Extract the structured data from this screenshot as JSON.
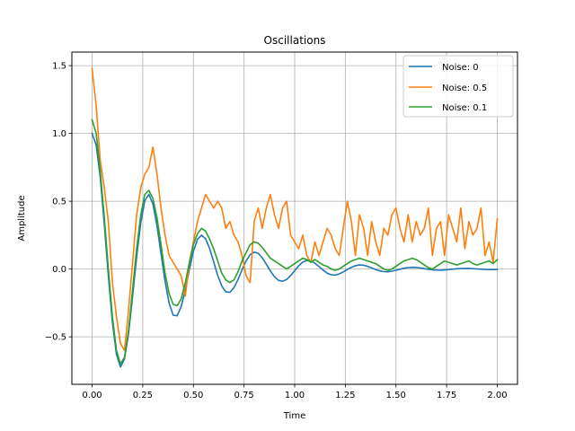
{
  "chart_data": {
    "type": "line",
    "title": "Oscillations",
    "xlabel": "Time",
    "ylabel": "Amplitude",
    "xlim": [
      -0.1,
      2.1
    ],
    "ylim": [
      -0.85,
      1.6
    ],
    "x_ticks": [
      0.0,
      0.25,
      0.5,
      0.75,
      1.0,
      1.25,
      1.5,
      1.75,
      2.0
    ],
    "x_tick_labels": [
      "0.00",
      "0.25",
      "0.50",
      "0.75",
      "1.00",
      "1.25",
      "1.50",
      "1.75",
      "2.00"
    ],
    "y_ticks": [
      -0.5,
      0.0,
      0.5,
      1.0,
      1.5
    ],
    "y_tick_labels": [
      "−0.5",
      "0.0",
      "0.5",
      "1.0",
      "1.5"
    ],
    "grid": true,
    "legend_position": "top-right",
    "series": [
      {
        "name": "Noise: 0",
        "color": "#1f77b4",
        "x": [
          0.0,
          0.02,
          0.04,
          0.06,
          0.08,
          0.1,
          0.12,
          0.14,
          0.16,
          0.18,
          0.2,
          0.22,
          0.24,
          0.26,
          0.28,
          0.3,
          0.32,
          0.34,
          0.36,
          0.38,
          0.4,
          0.42,
          0.44,
          0.46,
          0.48,
          0.5,
          0.52,
          0.54,
          0.56,
          0.58,
          0.6,
          0.62,
          0.64,
          0.66,
          0.68,
          0.7,
          0.72,
          0.74,
          0.76,
          0.78,
          0.8,
          0.82,
          0.84,
          0.86,
          0.88,
          0.9,
          0.92,
          0.94,
          0.96,
          0.98,
          1.0,
          1.02,
          1.04,
          1.06,
          1.08,
          1.1,
          1.12,
          1.14,
          1.16,
          1.18,
          1.2,
          1.22,
          1.24,
          1.26,
          1.28,
          1.3,
          1.32,
          1.34,
          1.36,
          1.38,
          1.4,
          1.42,
          1.44,
          1.46,
          1.48,
          1.5,
          1.52,
          1.54,
          1.56,
          1.58,
          1.6,
          1.62,
          1.64,
          1.66,
          1.68,
          1.7,
          1.72,
          1.74,
          1.76,
          1.78,
          1.8,
          1.82,
          1.84,
          1.86,
          1.88,
          1.9,
          1.92,
          1.94,
          1.96,
          1.98,
          2.0
        ],
        "y": [
          1.0,
          0.914,
          0.675,
          0.33,
          -0.05,
          -0.391,
          -0.628,
          -0.722,
          -0.663,
          -0.473,
          -0.201,
          0.092,
          0.343,
          0.504,
          0.55,
          0.48,
          0.321,
          0.115,
          -0.089,
          -0.251,
          -0.34,
          -0.345,
          -0.276,
          -0.152,
          -0.002,
          0.131,
          0.219,
          0.25,
          0.224,
          0.152,
          0.053,
          -0.046,
          -0.124,
          -0.168,
          -0.171,
          -0.137,
          -0.077,
          -0.006,
          0.06,
          0.106,
          0.125,
          0.116,
          0.083,
          0.036,
          -0.014,
          -0.057,
          -0.083,
          -0.09,
          -0.077,
          -0.048,
          -0.012,
          0.024,
          0.051,
          0.063,
          0.06,
          0.043,
          0.018,
          -0.008,
          -0.03,
          -0.042,
          -0.044,
          -0.036,
          -0.021,
          -0.003,
          0.013,
          0.025,
          0.03,
          0.028,
          0.02,
          0.008,
          -0.004,
          -0.014,
          -0.019,
          -0.02,
          -0.016,
          -0.009,
          -0.001,
          0.006,
          0.011,
          0.013,
          0.012,
          0.008,
          0.003,
          -0.002,
          -0.006,
          -0.008,
          -0.009,
          -0.007,
          -0.004,
          -0.001,
          0.002,
          0.004,
          0.005,
          0.005,
          0.003,
          0.001,
          -0.001,
          -0.003,
          -0.004,
          -0.004,
          -0.003
        ]
      },
      {
        "name": "Noise: 0.5",
        "color": "#ff7f0e",
        "x": [
          0.0,
          0.02,
          0.04,
          0.06,
          0.08,
          0.1,
          0.12,
          0.14,
          0.16,
          0.18,
          0.2,
          0.22,
          0.24,
          0.26,
          0.28,
          0.3,
          0.32,
          0.34,
          0.36,
          0.38,
          0.4,
          0.42,
          0.44,
          0.46,
          0.48,
          0.5,
          0.52,
          0.54,
          0.56,
          0.58,
          0.6,
          0.62,
          0.64,
          0.66,
          0.68,
          0.7,
          0.72,
          0.74,
          0.76,
          0.78,
          0.8,
          0.82,
          0.84,
          0.86,
          0.88,
          0.9,
          0.92,
          0.94,
          0.96,
          0.98,
          1.0,
          1.02,
          1.04,
          1.06,
          1.08,
          1.1,
          1.12,
          1.14,
          1.16,
          1.18,
          1.2,
          1.22,
          1.24,
          1.26,
          1.28,
          1.3,
          1.32,
          1.34,
          1.36,
          1.38,
          1.4,
          1.42,
          1.44,
          1.46,
          1.48,
          1.5,
          1.52,
          1.54,
          1.56,
          1.58,
          1.6,
          1.62,
          1.64,
          1.66,
          1.68,
          1.7,
          1.72,
          1.74,
          1.76,
          1.78,
          1.8,
          1.82,
          1.84,
          1.86,
          1.88,
          1.9,
          1.92,
          1.94,
          1.96,
          1.98,
          2.0
        ],
        "y": [
          1.48,
          1.2,
          0.8,
          0.6,
          0.35,
          -0.1,
          -0.35,
          -0.55,
          -0.6,
          -0.3,
          0.05,
          0.4,
          0.6,
          0.7,
          0.75,
          0.9,
          0.7,
          0.45,
          0.25,
          0.1,
          0.05,
          0.0,
          -0.05,
          -0.2,
          0.05,
          0.2,
          0.35,
          0.45,
          0.55,
          0.5,
          0.45,
          0.5,
          0.45,
          0.3,
          0.35,
          0.25,
          0.2,
          0.1,
          -0.05,
          -0.1,
          0.35,
          0.45,
          0.3,
          0.45,
          0.55,
          0.4,
          0.3,
          0.45,
          0.5,
          0.25,
          0.2,
          0.15,
          0.25,
          0.1,
          0.05,
          0.2,
          0.1,
          0.2,
          0.3,
          0.25,
          0.15,
          0.1,
          0.3,
          0.5,
          0.35,
          0.1,
          0.4,
          0.3,
          0.1,
          0.35,
          0.2,
          0.1,
          0.3,
          0.25,
          0.4,
          0.45,
          0.3,
          0.2,
          0.4,
          0.2,
          0.35,
          0.25,
          0.3,
          0.45,
          0.1,
          0.3,
          0.35,
          0.1,
          0.4,
          0.3,
          0.2,
          0.45,
          0.15,
          0.35,
          0.25,
          0.3,
          0.45,
          0.1,
          0.2,
          0.05,
          0.37
        ]
      },
      {
        "name": "Noise: 0.1",
        "color": "#2ca02c",
        "x": [
          0.0,
          0.02,
          0.04,
          0.06,
          0.08,
          0.1,
          0.12,
          0.14,
          0.16,
          0.18,
          0.2,
          0.22,
          0.24,
          0.26,
          0.28,
          0.3,
          0.32,
          0.34,
          0.36,
          0.38,
          0.4,
          0.42,
          0.44,
          0.46,
          0.48,
          0.5,
          0.52,
          0.54,
          0.56,
          0.58,
          0.6,
          0.62,
          0.64,
          0.66,
          0.68,
          0.7,
          0.72,
          0.74,
          0.76,
          0.78,
          0.8,
          0.82,
          0.84,
          0.86,
          0.88,
          0.9,
          0.92,
          0.94,
          0.96,
          0.98,
          1.0,
          1.02,
          1.04,
          1.06,
          1.08,
          1.1,
          1.12,
          1.14,
          1.16,
          1.18,
          1.2,
          1.22,
          1.24,
          1.26,
          1.28,
          1.3,
          1.32,
          1.34,
          1.36,
          1.38,
          1.4,
          1.42,
          1.44,
          1.46,
          1.48,
          1.5,
          1.52,
          1.54,
          1.56,
          1.58,
          1.6,
          1.62,
          1.64,
          1.66,
          1.68,
          1.7,
          1.72,
          1.74,
          1.76,
          1.78,
          1.8,
          1.82,
          1.84,
          1.86,
          1.88,
          1.9,
          1.92,
          1.94,
          1.96,
          1.98,
          2.0
        ],
        "y": [
          1.1,
          1.0,
          0.72,
          0.38,
          0.0,
          -0.35,
          -0.6,
          -0.7,
          -0.65,
          -0.45,
          -0.15,
          0.15,
          0.4,
          0.55,
          0.58,
          0.52,
          0.38,
          0.18,
          -0.03,
          -0.18,
          -0.26,
          -0.27,
          -0.22,
          -0.1,
          0.05,
          0.18,
          0.26,
          0.3,
          0.28,
          0.22,
          0.15,
          0.06,
          -0.03,
          -0.08,
          -0.1,
          -0.08,
          -0.02,
          0.06,
          0.12,
          0.18,
          0.2,
          0.19,
          0.16,
          0.12,
          0.08,
          0.06,
          0.04,
          0.02,
          0.0,
          0.02,
          0.04,
          0.06,
          0.08,
          0.07,
          0.05,
          0.07,
          0.05,
          0.03,
          0.02,
          0.0,
          -0.01,
          0.0,
          0.02,
          0.04,
          0.06,
          0.07,
          0.08,
          0.07,
          0.06,
          0.05,
          0.04,
          0.02,
          0.0,
          -0.01,
          0.0,
          0.02,
          0.04,
          0.06,
          0.07,
          0.08,
          0.07,
          0.05,
          0.03,
          0.01,
          0.0,
          0.02,
          0.04,
          0.06,
          0.05,
          0.04,
          0.03,
          0.04,
          0.05,
          0.06,
          0.04,
          0.03,
          0.04,
          0.05,
          0.06,
          0.04,
          0.07
        ]
      }
    ]
  }
}
